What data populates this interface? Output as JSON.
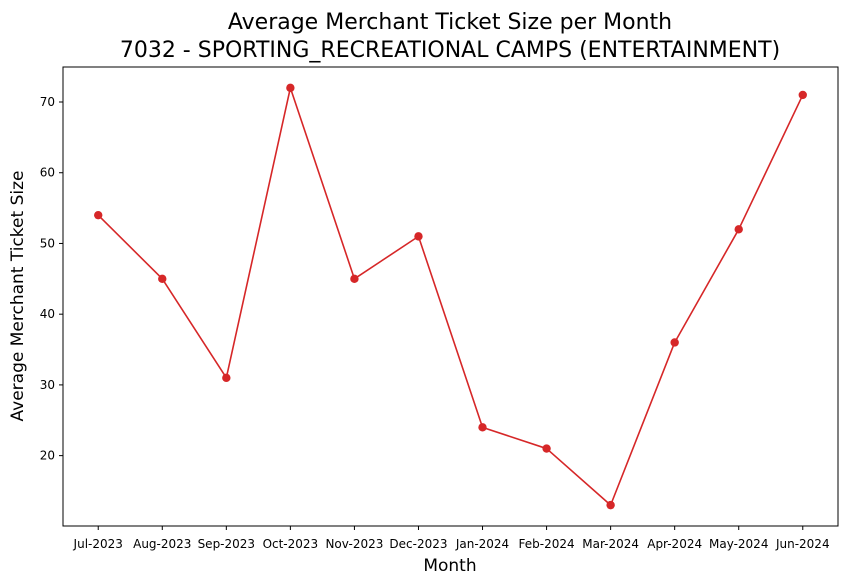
{
  "chart_data": {
    "type": "line",
    "title": "Average Merchant Ticket Size per Month",
    "subtitle": "7032 - SPORTING_RECREATIONAL CAMPS (ENTERTAINMENT)",
    "xlabel": "Month",
    "ylabel": "Average Merchant Ticket Size",
    "categories": [
      "Jul-2023",
      "Aug-2023",
      "Sep-2023",
      "Oct-2023",
      "Nov-2023",
      "Dec-2023",
      "Jan-2024",
      "Feb-2024",
      "Mar-2024",
      "Apr-2024",
      "May-2024",
      "Jun-2024"
    ],
    "series": [
      {
        "values": [
          54,
          45,
          31,
          72,
          45,
          51,
          24,
          21,
          13,
          36,
          52,
          71
        ]
      }
    ],
    "yticks": [
      20,
      30,
      40,
      50,
      60,
      70
    ],
    "ylim": [
      10.05,
      74.95
    ],
    "grid": false,
    "legend": "none",
    "color": "#d62728"
  }
}
